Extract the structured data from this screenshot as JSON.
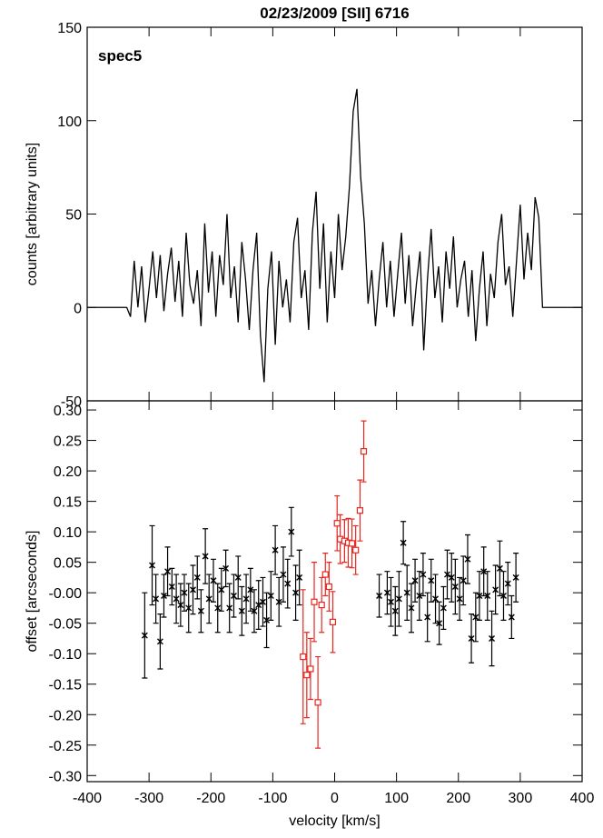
{
  "chart_data": [
    {
      "type": "line",
      "title": "02/23/2009 [SII] 6716",
      "annotation": "spec5",
      "ylabel": "counts [arbitrary units]",
      "color": "#000000",
      "xlim": [
        -400,
        400
      ],
      "ylim": [
        -50,
        150
      ],
      "yticks": [
        -50,
        0,
        50,
        100,
        150
      ],
      "x": [
        -400,
        -336,
        -330,
        -324,
        -318,
        -312,
        -306,
        -300,
        -294,
        -288,
        -282,
        -276,
        -270,
        -264,
        -258,
        -252,
        -246,
        -240,
        -234,
        -228,
        -222,
        -216,
        -210,
        -204,
        -198,
        -192,
        -186,
        -180,
        -174,
        -168,
        -162,
        -156,
        -150,
        -144,
        -138,
        -132,
        -126,
        -120,
        -114,
        -108,
        -102,
        -96,
        -90,
        -84,
        -78,
        -72,
        -66,
        -60,
        -54,
        -48,
        -42,
        -36,
        -30,
        -24,
        -18,
        -12,
        -6,
        0,
        6,
        12,
        18,
        24,
        30,
        36,
        42,
        48,
        54,
        60,
        66,
        72,
        78,
        84,
        90,
        96,
        102,
        108,
        114,
        120,
        126,
        132,
        138,
        144,
        150,
        156,
        162,
        168,
        174,
        180,
        186,
        192,
        198,
        204,
        210,
        216,
        222,
        228,
        234,
        240,
        246,
        252,
        258,
        264,
        270,
        276,
        282,
        288,
        294,
        300,
        306,
        312,
        318,
        324,
        330,
        336,
        400
      ],
      "values": [
        0,
        0,
        -5,
        25,
        0,
        22,
        -8,
        10,
        30,
        5,
        28,
        -2,
        18,
        32,
        3,
        25,
        -5,
        40,
        12,
        2,
        20,
        -10,
        45,
        8,
        30,
        -5,
        28,
        12,
        50,
        5,
        22,
        -8,
        35,
        15,
        -12,
        20,
        40,
        -15,
        -40,
        10,
        30,
        -20,
        25,
        0,
        15,
        -8,
        35,
        48,
        5,
        20,
        -12,
        40,
        62,
        10,
        45,
        -8,
        30,
        5,
        50,
        20,
        38,
        65,
        105,
        117,
        70,
        45,
        2,
        20,
        -10,
        15,
        35,
        0,
        25,
        -5,
        18,
        40,
        2,
        28,
        -10,
        12,
        30,
        -23,
        15,
        42,
        5,
        22,
        -8,
        30,
        10,
        38,
        0,
        15,
        25,
        -5,
        20,
        -18,
        10,
        30,
        -10,
        18,
        5,
        35,
        50,
        12,
        22,
        -5,
        25,
        55,
        15,
        40,
        20,
        59,
        48,
        0,
        0
      ]
    },
    {
      "type": "scatter",
      "ylabel": "offset [arcseconds]",
      "xlabel": "velocity [km/s]",
      "xlim": [
        -400,
        400
      ],
      "ylim": [
        -0.31,
        0.315
      ],
      "xticks": [
        -400,
        -300,
        -200,
        -100,
        0,
        100,
        200,
        300,
        400
      ],
      "yticks": [
        {
          "value": -0.3,
          "label": "-0.30"
        },
        -0.25,
        {
          "value": -0.2,
          "label": "-0.20"
        },
        -0.15,
        {
          "value": -0.1,
          "label": "-0.10"
        },
        -0.05,
        {
          "value": 0,
          "label": "-0.00"
        },
        0.05,
        {
          "value": 0.1,
          "label": "0.10"
        },
        0.15,
        {
          "value": 0.2,
          "label": "0.20"
        },
        0.25,
        {
          "value": 0.3,
          "label": "0.30"
        }
      ],
      "series": [
        {
          "color": "#000000",
          "marker": "asterisk",
          "x": [
            -307,
            -295,
            -289,
            -282,
            -276,
            -270,
            -263,
            -256,
            -249,
            -243,
            -236,
            -229,
            -222,
            -216,
            -209,
            -203,
            -196,
            -189,
            -183,
            -176,
            -170,
            -163,
            -156,
            -150,
            -143,
            -136,
            -130,
            -123,
            -116,
            -110,
            -103,
            -96,
            -90,
            -83,
            -76,
            -70,
            -63,
            -57,
            72,
            85,
            91,
            98,
            104,
            111,
            117,
            124,
            130,
            137,
            143,
            150,
            156,
            163,
            169,
            176,
            182,
            189,
            195,
            202,
            208,
            215,
            221,
            228,
            234,
            241,
            247,
            254,
            260,
            267,
            273,
            280,
            286,
            293
          ],
          "values": [
            -0.07,
            0.045,
            -0.01,
            -0.08,
            -0.005,
            0.035,
            0.01,
            -0.01,
            -0.02,
            0.0,
            -0.025,
            0.005,
            0.025,
            -0.03,
            0.06,
            -0.01,
            0.02,
            -0.025,
            0.005,
            0.04,
            -0.025,
            -0.005,
            0.025,
            -0.03,
            -0.01,
            0.005,
            -0.03,
            -0.02,
            -0.015,
            -0.045,
            -0.005,
            0.07,
            -0.015,
            0.03,
            0.015,
            0.1,
            0.0,
            0.025,
            -0.005,
            0.0,
            -0.015,
            -0.03,
            -0.01,
            0.082,
            0.0,
            -0.025,
            0.02,
            -0.005,
            0.03,
            -0.04,
            0.02,
            -0.01,
            -0.05,
            -0.025,
            0.03,
            0.025,
            0.01,
            -0.01,
            0.02,
            0.055,
            -0.075,
            -0.04,
            -0.005,
            0.035,
            -0.005,
            -0.075,
            0.005,
            0.04,
            -0.005,
            0.015,
            -0.04,
            0.025
          ],
          "errors": [
            0.07,
            0.065,
            0.04,
            0.045,
            0.035,
            0.04,
            0.03,
            0.04,
            0.035,
            0.03,
            0.04,
            0.04,
            0.035,
            0.035,
            0.045,
            0.04,
            0.035,
            0.04,
            0.035,
            0.03,
            0.04,
            0.035,
            0.035,
            0.04,
            0.04,
            0.035,
            0.035,
            0.04,
            0.04,
            0.045,
            0.04,
            0.04,
            0.04,
            0.045,
            0.04,
            0.04,
            0.045,
            0.045,
            0.035,
            0.035,
            0.04,
            0.04,
            0.045,
            0.035,
            0.045,
            0.04,
            0.035,
            0.04,
            0.035,
            0.04,
            0.035,
            0.04,
            0.035,
            0.035,
            0.04,
            0.04,
            0.045,
            0.035,
            0.04,
            0.04,
            0.04,
            0.04,
            0.04,
            0.04,
            0.04,
            0.045,
            0.04,
            0.045,
            0.04,
            0.035,
            0.035,
            0.04
          ]
        },
        {
          "color": "#e8261f",
          "marker": "square",
          "x": [
            -51,
            -45,
            -39,
            -33,
            -27,
            -21,
            -15,
            -9,
            -3,
            4,
            9,
            16,
            22,
            28,
            34,
            41,
            47
          ],
          "values": [
            -0.105,
            -0.135,
            -0.125,
            -0.015,
            -0.18,
            -0.02,
            0.03,
            0.01,
            -0.048,
            0.114,
            0.088,
            0.085,
            0.082,
            0.081,
            0.07,
            0.135,
            0.232
          ],
          "errors": [
            0.11,
            0.07,
            0.05,
            0.065,
            0.075,
            0.045,
            0.035,
            0.04,
            0.05,
            0.045,
            0.04,
            0.035,
            0.04,
            0.04,
            0.04,
            0.05,
            0.05
          ]
        }
      ]
    }
  ]
}
